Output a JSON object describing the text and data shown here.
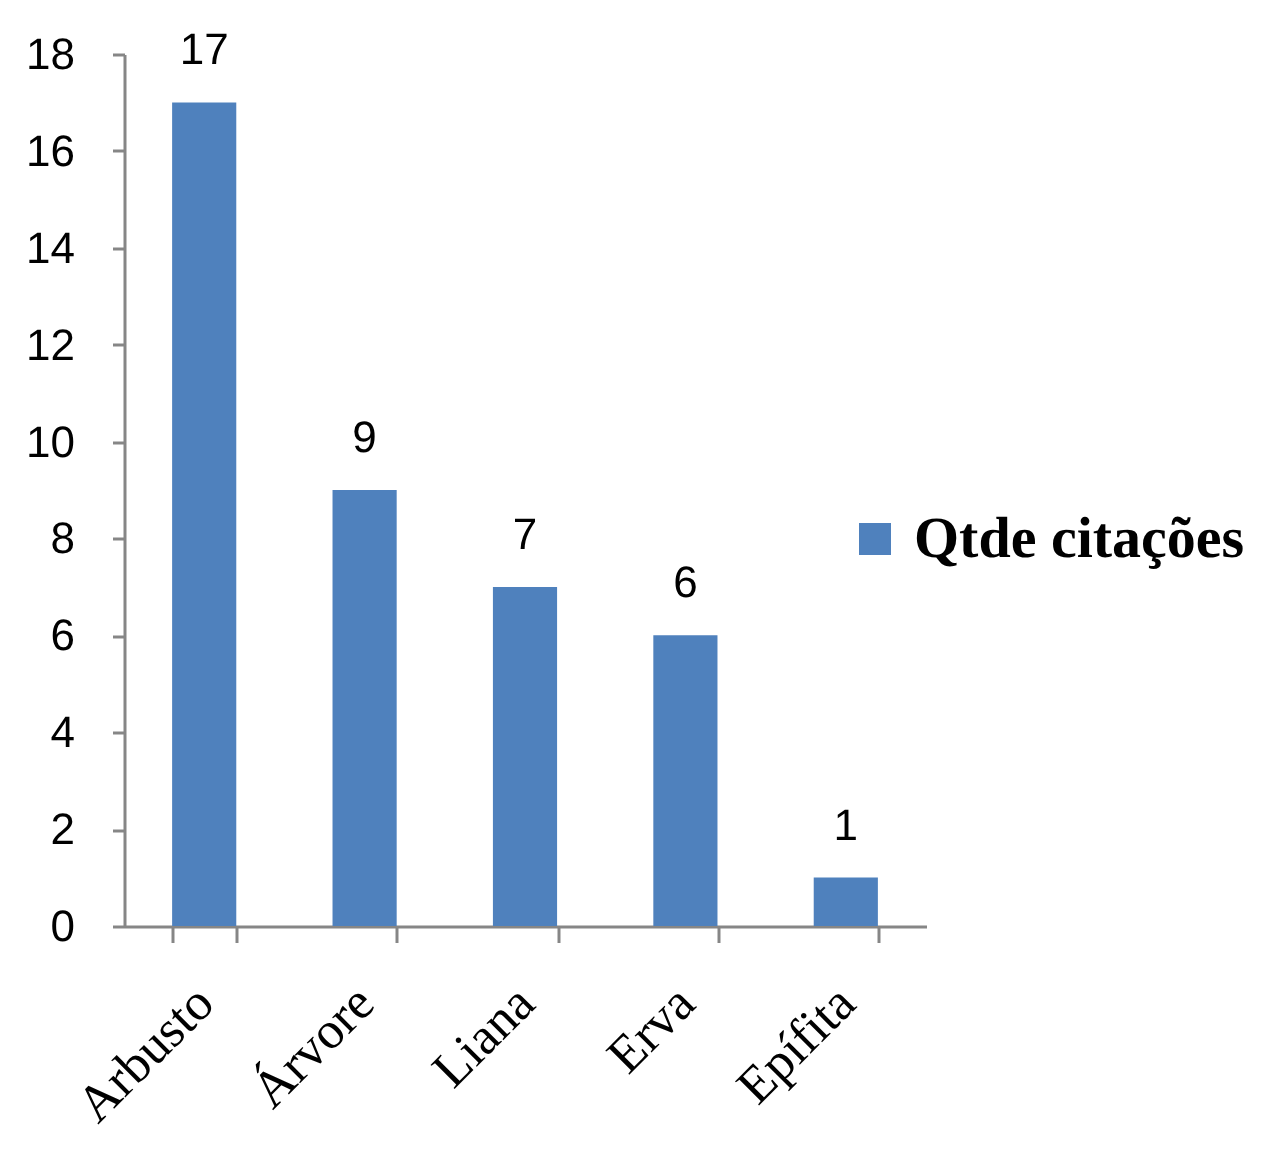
{
  "chart_data": {
    "type": "bar",
    "categories": [
      "Arbusto",
      "Árvore",
      "Liana",
      "Erva",
      "Epífita"
    ],
    "series": [
      {
        "name": "Qtde citações",
        "color": "#4f81bd",
        "values": [
          17,
          9,
          7,
          6,
          1
        ]
      }
    ],
    "ylim": [
      0,
      18
    ],
    "yticks": [
      0,
      2,
      4,
      6,
      8,
      10,
      12,
      14,
      16,
      18
    ],
    "data_labels": true,
    "legend": "right"
  }
}
